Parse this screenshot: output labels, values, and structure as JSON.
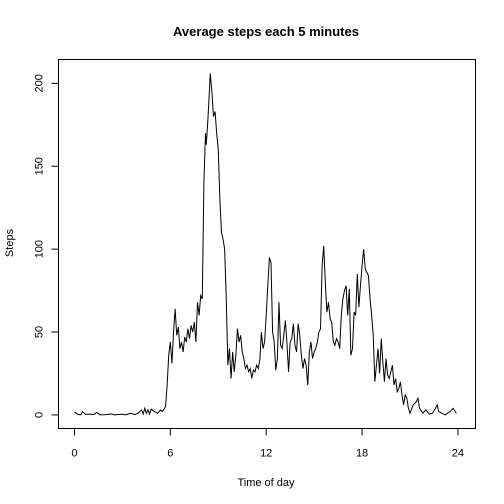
{
  "chart_data": {
    "type": "line",
    "title": "Average steps each 5 minutes",
    "x_label": "Time of day",
    "y_label": "Steps",
    "color": "#000000",
    "x": [
      0,
      0.2,
      0.4,
      0.5,
      0.7,
      1.0,
      1.2,
      1.4,
      1.6,
      2.0,
      2.3,
      2.5,
      3.0,
      3.2,
      3.5,
      3.8,
      4.0,
      4.2,
      4.3,
      4.4,
      4.5,
      4.6,
      4.7,
      4.8,
      5.0,
      5.2,
      5.4,
      5.5,
      5.6,
      5.7,
      5.8,
      5.9,
      6.0,
      6.1,
      6.2,
      6.3,
      6.4,
      6.5,
      6.6,
      6.7,
      6.8,
      6.9,
      7.0,
      7.1,
      7.2,
      7.3,
      7.4,
      7.5,
      7.6,
      7.7,
      7.8,
      7.9,
      8.0,
      8.1,
      8.2,
      8.25,
      8.35,
      8.5,
      8.6,
      8.7,
      8.8,
      8.9,
      9.0,
      9.1,
      9.2,
      9.3,
      9.4,
      9.5,
      9.6,
      9.7,
      9.8,
      9.9,
      10.0,
      10.1,
      10.2,
      10.3,
      10.4,
      10.5,
      10.6,
      10.7,
      10.8,
      10.9,
      11.0,
      11.1,
      11.2,
      11.3,
      11.4,
      11.5,
      11.6,
      11.7,
      11.8,
      11.9,
      12.0,
      12.1,
      12.2,
      12.3,
      12.4,
      12.5,
      12.6,
      12.7,
      12.8,
      12.9,
      13.0,
      13.1,
      13.2,
      13.3,
      13.4,
      13.5,
      13.6,
      13.7,
      13.8,
      13.9,
      14.0,
      14.1,
      14.2,
      14.3,
      14.4,
      14.5,
      14.6,
      14.7,
      14.8,
      14.9,
      15.0,
      15.1,
      15.2,
      15.3,
      15.4,
      15.5,
      15.6,
      15.7,
      15.8,
      15.9,
      16.0,
      16.1,
      16.2,
      16.3,
      16.4,
      16.5,
      16.6,
      16.7,
      16.8,
      16.9,
      17.0,
      17.1,
      17.2,
      17.3,
      17.4,
      17.5,
      17.6,
      17.7,
      17.8,
      17.9,
      18.0,
      18.1,
      18.2,
      18.3,
      18.4,
      18.5,
      18.6,
      18.7,
      18.8,
      18.9,
      19.0,
      19.1,
      19.2,
      19.3,
      19.4,
      19.5,
      19.6,
      19.7,
      19.8,
      19.9,
      20.0,
      20.1,
      20.2,
      20.3,
      20.4,
      20.5,
      20.6,
      20.7,
      20.8,
      20.9,
      21.0,
      21.2,
      21.4,
      21.5,
      21.6,
      21.8,
      22.0,
      22.2,
      22.4,
      22.6,
      22.7,
      22.8,
      23.0,
      23.2,
      23.5,
      23.7,
      23.9
    ],
    "values": [
      1.7,
      0.3,
      0.1,
      2,
      0.3,
      0.5,
      0.2,
      1.5,
      0,
      0.2,
      0.6,
      0,
      0.5,
      0,
      1,
      0.2,
      1.2,
      3,
      0.5,
      4,
      1,
      3,
      0.5,
      3.5,
      2,
      1,
      3,
      2,
      3.5,
      5,
      18,
      36,
      44,
      31,
      50,
      64,
      48,
      53,
      40,
      44,
      38,
      47,
      44,
      52,
      46,
      54,
      50,
      56,
      44,
      68,
      60,
      72,
      70,
      140,
      170,
      163,
      178,
      206,
      195,
      180,
      183,
      170,
      160,
      130,
      110,
      106,
      100,
      70,
      30,
      40,
      22,
      38,
      26,
      36,
      52,
      44,
      48,
      38,
      34,
      28,
      30,
      26,
      28,
      22,
      27,
      26,
      30,
      28,
      33,
      50,
      40,
      44,
      60,
      78,
      95,
      92,
      50,
      44,
      27,
      34,
      68,
      42,
      40,
      48,
      57,
      43,
      26,
      44,
      46,
      55,
      42,
      38,
      55,
      48,
      36,
      28,
      34,
      30,
      18,
      38,
      44,
      34,
      38,
      40,
      44,
      50,
      52,
      90,
      102,
      80,
      62,
      68,
      58,
      56,
      44,
      42,
      46,
      44,
      40,
      60,
      70,
      75,
      78,
      60,
      76,
      36,
      40,
      62,
      60,
      85,
      65,
      78,
      90,
      100,
      88,
      86,
      84,
      70,
      60,
      48,
      20,
      30,
      40,
      25,
      46,
      32,
      20,
      34,
      24,
      22,
      26,
      30,
      18,
      22,
      14,
      16,
      20,
      12,
      6,
      12,
      10,
      4,
      1,
      6,
      8,
      10,
      4,
      1,
      3,
      0.5,
      1,
      4,
      6,
      2,
      1,
      0,
      2,
      4,
      1
    ],
    "xlim": [
      -1,
      25.1
    ],
    "ylim": [
      -8.2,
      214.4
    ],
    "xticks": [
      0,
      6,
      12,
      18,
      24
    ],
    "yticks": [
      0,
      50,
      100,
      150,
      200
    ]
  }
}
